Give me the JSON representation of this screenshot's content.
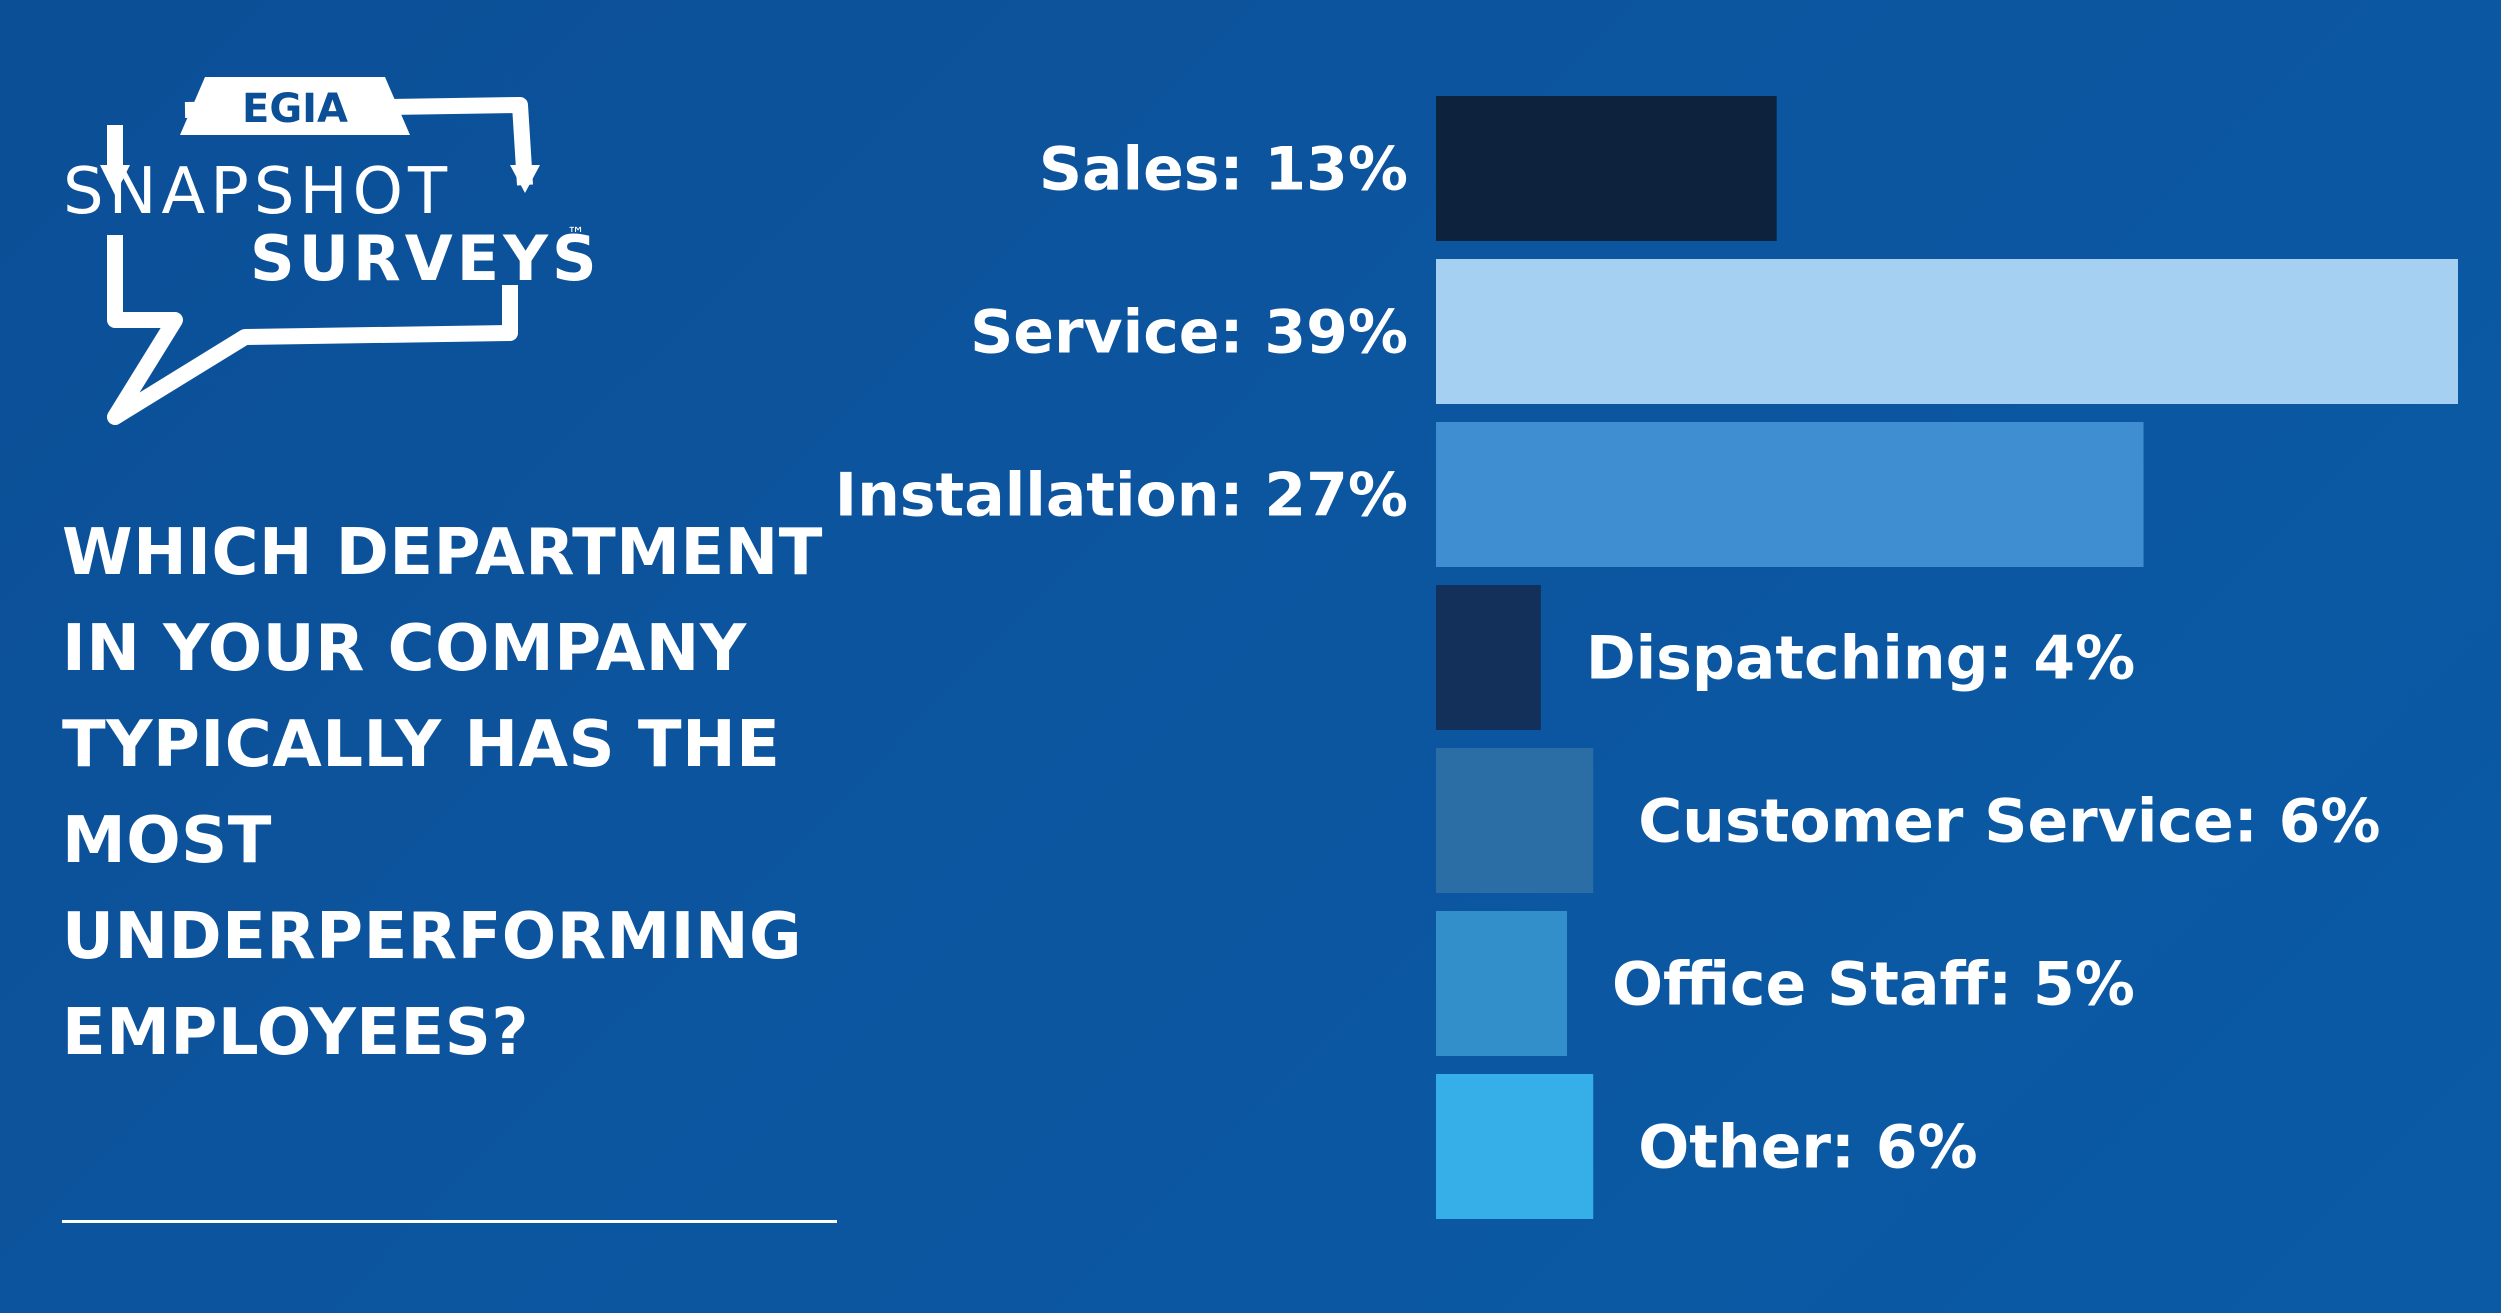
{
  "logo": {
    "brand": "EGIA",
    "line1": "SNAPSHOT",
    "line2": "SURVEYS",
    "trademark": "™"
  },
  "question": "WHICH DEPARTMENT IN YOUR COMPANY TYPICALLY HAS THE MOST UNDERPERFORMING EMPLOYEES?",
  "chart_data": {
    "type": "bar",
    "orientation": "horizontal",
    "unit": "%",
    "categories": [
      "Sales",
      "Service",
      "Installation",
      "Dispatching",
      "Customer Service",
      "Office Staff",
      "Other"
    ],
    "values": [
      13,
      39,
      27,
      4,
      6,
      5,
      6
    ],
    "labels": [
      "Sales: 13%",
      "Service: 39%",
      "Installation: 27%",
      "Dispatching: 4%",
      "Customer Service: 6%",
      "Office Staff: 5%",
      "Other: 6%"
    ],
    "colors": [
      "#0c223d",
      "#a5d0f2",
      "#408ed2",
      "#13305a",
      "#2a6ea5",
      "#328fc9",
      "#36afe8"
    ],
    "label_position": [
      "left",
      "left",
      "left",
      "right",
      "right",
      "right",
      "right"
    ],
    "xlim": [
      0,
      39
    ],
    "grid": false,
    "legend": "none"
  }
}
